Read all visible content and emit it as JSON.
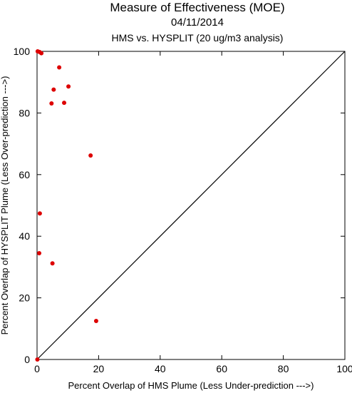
{
  "chart_data": {
    "type": "scatter",
    "title": "Measure of Effectiveness (MOE)",
    "subtitle_date": "04/11/2014",
    "subtitle_analysis": "HMS vs. HYSPLIT  (20 ug/m3 analysis)",
    "xlabel": "Percent Overlap of HMS Plume (Less Under-prediction --->)",
    "ylabel": "Percent Overlap of HYSPLIT Plume (Less Over-prediction --->)",
    "xlim": [
      0,
      100
    ],
    "ylim": [
      0,
      100
    ],
    "x_ticks": [
      0,
      20,
      40,
      60,
      80,
      100
    ],
    "y_ticks": [
      0,
      20,
      40,
      60,
      80,
      100
    ],
    "x_tick_labels": [
      "0",
      "20",
      "40",
      "60",
      "80",
      "100"
    ],
    "y_tick_labels": [
      "0",
      "20",
      "40",
      "60",
      "80",
      "100"
    ],
    "grid": false,
    "reference_line": {
      "from": [
        0,
        0
      ],
      "to": [
        100,
        100
      ],
      "color": "#000000"
    },
    "marker_color": "#dd0000",
    "points": [
      {
        "x": 0.2,
        "y": 100
      },
      {
        "x": 0.8,
        "y": 99.8
      },
      {
        "x": 1.4,
        "y": 99.4
      },
      {
        "x": 7.2,
        "y": 94.8
      },
      {
        "x": 10.2,
        "y": 88.6
      },
      {
        "x": 5.4,
        "y": 87.6
      },
      {
        "x": 8.8,
        "y": 83.3
      },
      {
        "x": 4.7,
        "y": 83.1
      },
      {
        "x": 17.4,
        "y": 66.2
      },
      {
        "x": 0.9,
        "y": 47.4
      },
      {
        "x": 0.7,
        "y": 34.5
      },
      {
        "x": 5.0,
        "y": 31.2
      },
      {
        "x": 19.2,
        "y": 12.5
      },
      {
        "x": 0.1,
        "y": 0
      }
    ]
  }
}
